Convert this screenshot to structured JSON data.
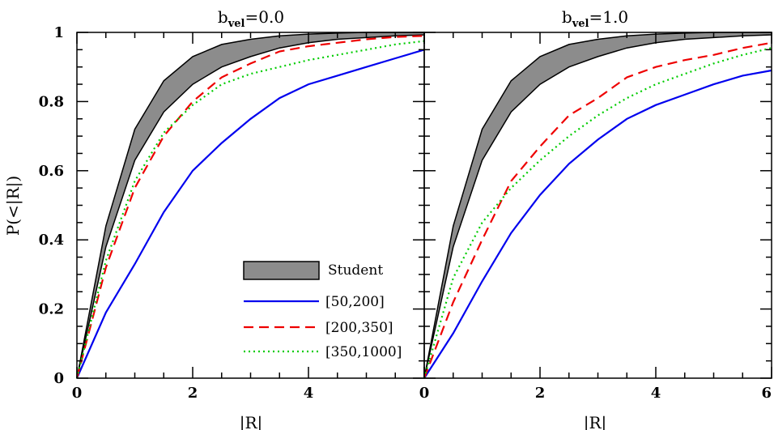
{
  "chart_data": [
    {
      "type": "line",
      "title_main": "b",
      "title_sub": "vel",
      "title_rest": "=0.0",
      "xlabel": "|R|",
      "ylabel": "P(<|R|)",
      "xlim": [
        0,
        6
      ],
      "ylim": [
        0,
        1
      ],
      "xticks": [
        0,
        2,
        4
      ],
      "yticks": [
        0,
        0.2,
        0.4,
        0.6,
        0.8,
        1
      ],
      "ytick_labels": [
        "0",
        "0.2",
        "0.4",
        "0.6",
        "0.8",
        "1"
      ],
      "band": {
        "name": "Student",
        "color": "#8c8c8c",
        "x": [
          0,
          0.5,
          1,
          1.5,
          2,
          2.5,
          3,
          3.5,
          4,
          4.5,
          5,
          5.5,
          6
        ],
        "upper": [
          0,
          0.44,
          0.72,
          0.86,
          0.93,
          0.965,
          0.98,
          0.99,
          0.995,
          0.998,
          1.0,
          1.0,
          1.0
        ],
        "lower": [
          0,
          0.38,
          0.63,
          0.77,
          0.85,
          0.9,
          0.93,
          0.955,
          0.97,
          0.98,
          0.985,
          0.99,
          0.993
        ]
      },
      "series": [
        {
          "name": "[50,200]",
          "color": "#0000ee",
          "dash": "solid",
          "x": [
            0,
            0.5,
            1,
            1.5,
            2,
            2.5,
            3,
            3.5,
            4,
            4.5,
            5,
            5.5,
            6
          ],
          "y": [
            0,
            0.19,
            0.33,
            0.48,
            0.6,
            0.68,
            0.75,
            0.81,
            0.85,
            0.875,
            0.9,
            0.925,
            0.95
          ]
        },
        {
          "name": "[200,350]",
          "color": "#ee0000",
          "dash": "12,7",
          "x": [
            0,
            0.5,
            1,
            1.5,
            2,
            2.5,
            3,
            3.5,
            4,
            4.5,
            5,
            5.5,
            6
          ],
          "y": [
            0,
            0.32,
            0.55,
            0.7,
            0.8,
            0.87,
            0.91,
            0.945,
            0.96,
            0.97,
            0.98,
            0.987,
            0.99
          ]
        },
        {
          "name": "[350,1000]",
          "color": "#00cc00",
          "dash": "2,4",
          "x": [
            0,
            0.5,
            1,
            1.5,
            2,
            2.5,
            3,
            3.5,
            4,
            4.5,
            5,
            5.5,
            6
          ],
          "y": [
            0,
            0.34,
            0.57,
            0.71,
            0.79,
            0.85,
            0.88,
            0.9,
            0.92,
            0.935,
            0.95,
            0.965,
            0.975
          ]
        }
      ]
    },
    {
      "type": "line",
      "title_main": "b",
      "title_sub": "vel",
      "title_rest": "=1.0",
      "xlabel": "|R|",
      "xlim": [
        0,
        6
      ],
      "ylim": [
        0,
        1
      ],
      "xticks": [
        0,
        2,
        4,
        6
      ],
      "band": {
        "name": "Student",
        "color": "#8c8c8c",
        "x": [
          0,
          0.5,
          1,
          1.5,
          2,
          2.5,
          3,
          3.5,
          4,
          4.5,
          5,
          5.5,
          6
        ],
        "upper": [
          0,
          0.44,
          0.72,
          0.86,
          0.93,
          0.965,
          0.98,
          0.99,
          0.995,
          0.998,
          1.0,
          1.0,
          1.0
        ],
        "lower": [
          0,
          0.38,
          0.63,
          0.77,
          0.85,
          0.9,
          0.93,
          0.955,
          0.97,
          0.98,
          0.985,
          0.99,
          0.993
        ]
      },
      "series": [
        {
          "name": "[50,200]",
          "color": "#0000ee",
          "dash": "solid",
          "x": [
            0,
            0.5,
            1,
            1.5,
            2,
            2.5,
            3,
            3.5,
            4,
            4.5,
            5,
            5.5,
            6
          ],
          "y": [
            0,
            0.13,
            0.28,
            0.42,
            0.53,
            0.62,
            0.69,
            0.75,
            0.79,
            0.82,
            0.85,
            0.875,
            0.89
          ]
        },
        {
          "name": "[200,350]",
          "color": "#ee0000",
          "dash": "12,7",
          "x": [
            0,
            0.5,
            1,
            1.5,
            2,
            2.5,
            3,
            3.5,
            4,
            4.5,
            5,
            5.5,
            6
          ],
          "y": [
            0,
            0.22,
            0.4,
            0.57,
            0.67,
            0.76,
            0.81,
            0.87,
            0.9,
            0.92,
            0.935,
            0.955,
            0.97
          ]
        },
        {
          "name": "[350,1000]",
          "color": "#00cc00",
          "dash": "2,4",
          "x": [
            0,
            0.5,
            1,
            1.5,
            2,
            2.5,
            3,
            3.5,
            4,
            4.5,
            5,
            5.5,
            6
          ],
          "y": [
            0,
            0.29,
            0.45,
            0.55,
            0.63,
            0.7,
            0.76,
            0.81,
            0.85,
            0.88,
            0.91,
            0.935,
            0.955
          ]
        }
      ]
    }
  ],
  "legend": {
    "items": [
      "Student",
      "[50,200]",
      "[200,350]",
      "[350,1000]"
    ]
  }
}
